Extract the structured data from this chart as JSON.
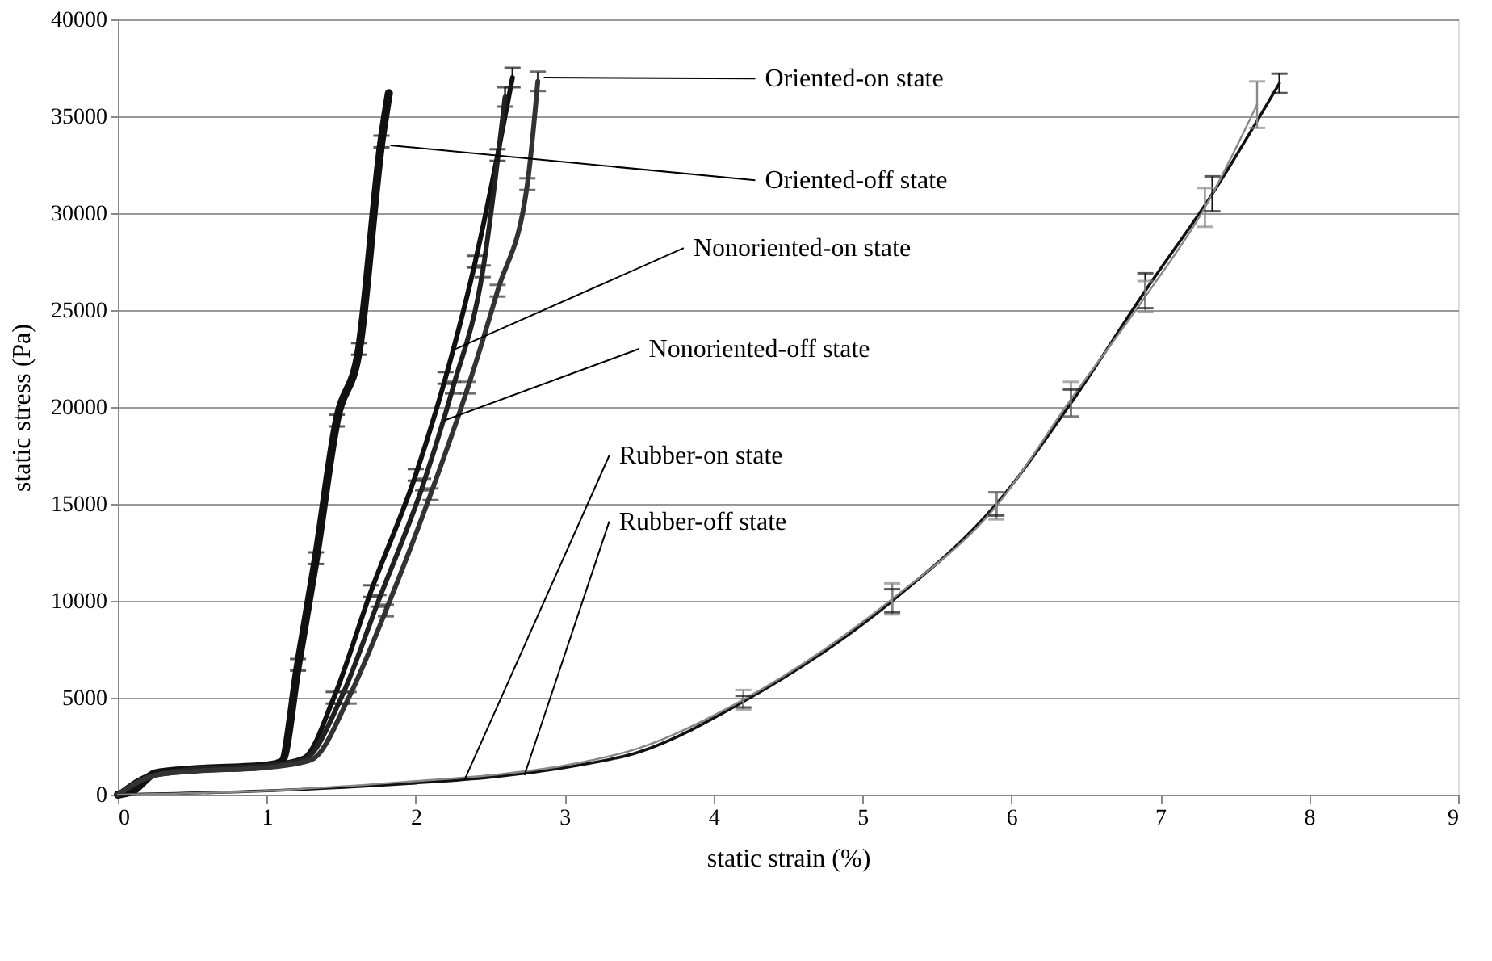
{
  "chart_data": {
    "type": "line",
    "xlabel": "static strain (%)",
    "ylabel": "static stress (Pa)",
    "xlim": [
      0,
      9
    ],
    "xticks": [
      0,
      1,
      2,
      3,
      4,
      5,
      6,
      7,
      8,
      9
    ],
    "ylim": [
      0,
      40000
    ],
    "yticks": [
      0,
      5000,
      10000,
      15000,
      20000,
      25000,
      30000,
      35000,
      40000
    ],
    "grid": "y",
    "marker": "none",
    "line_style": "solid",
    "series": [
      {
        "color": "#111111",
        "x": [
          0,
          0.1,
          0.25,
          0.5,
          1.0,
          1.1,
          1.21,
          1.33,
          1.47,
          1.62,
          1.77,
          1.82
        ],
        "values": [
          0,
          200,
          1100,
          1300,
          1500,
          1700,
          6700,
          12200,
          19300,
          23000,
          33700,
          36200
        ],
        "errors": [
          null,
          null,
          null,
          null,
          null,
          null,
          300,
          300,
          300,
          300,
          300,
          null
        ]
      },
      {
        "color": "#111111",
        "x": [
          0,
          0.25,
          0.5,
          1.0,
          1.25,
          1.45,
          1.7,
          2.0,
          2.2,
          2.4,
          2.55,
          2.65
        ],
        "values": [
          0,
          1100,
          1300,
          1500,
          1900,
          5000,
          10500,
          16500,
          21500,
          27500,
          33000,
          37000
        ],
        "errors": [
          null,
          null,
          null,
          null,
          null,
          300,
          300,
          300,
          300,
          300,
          300,
          500
        ]
      },
      {
        "color": "#222222",
        "x": [
          0,
          0.25,
          0.5,
          1.0,
          1.25,
          1.5,
          1.75,
          2.05,
          2.25,
          2.45,
          2.6
        ],
        "values": [
          0,
          1000,
          1300,
          1500,
          1800,
          5000,
          10000,
          16000,
          21000,
          27000,
          36000
        ],
        "errors": [
          null,
          null,
          null,
          null,
          null,
          300,
          300,
          300,
          300,
          300,
          500
        ]
      },
      {
        "color": "#333333",
        "x": [
          0,
          0.25,
          0.5,
          1.0,
          1.3,
          1.55,
          1.8,
          2.1,
          2.35,
          2.55,
          2.75,
          2.82
        ],
        "values": [
          0,
          1000,
          1200,
          1400,
          1800,
          5000,
          9500,
          15500,
          21000,
          26000,
          31500,
          36800
        ],
        "errors": [
          null,
          null,
          null,
          null,
          null,
          300,
          300,
          300,
          300,
          300,
          300,
          500
        ]
      },
      {
        "color": "#111111",
        "x": [
          0,
          1,
          2,
          2.5,
          3,
          3.5,
          4.2,
          5.2,
          5.9,
          6.4,
          6.9,
          7.35,
          7.8
        ],
        "values": [
          0,
          200,
          600,
          900,
          1400,
          2200,
          4800,
          10000,
          15000,
          20200,
          26000,
          31000,
          36700
        ],
        "errors": [
          null,
          null,
          null,
          null,
          null,
          null,
          300,
          600,
          600,
          700,
          900,
          900,
          500
        ]
      },
      {
        "color": "#888888",
        "x": [
          0,
          1,
          2,
          2.5,
          3,
          3.5,
          4.2,
          5.2,
          5.9,
          6.4,
          6.9,
          7.3,
          7.65
        ],
        "values": [
          0,
          200,
          700,
          1000,
          1500,
          2400,
          4900,
          10100,
          14900,
          20400,
          25700,
          30300,
          35600
        ],
        "errors": [
          null,
          null,
          null,
          null,
          null,
          null,
          500,
          800,
          700,
          900,
          800,
          1000,
          1200
        ]
      }
    ],
    "annotations": [
      {
        "text": "Oriented-on state",
        "x": 2.86,
        "y": 37000
      },
      {
        "text": "Oriented-off state",
        "x": 1.83,
        "y": 33500
      },
      {
        "text": "Nonoriented-on state",
        "x": 2.24,
        "y": 22900
      },
      {
        "text": "Nonoriented-off state",
        "x": 2.19,
        "y": 19300
      },
      {
        "text": "Rubber-on state",
        "x": 2.33,
        "y": 800
      },
      {
        "text": "Rubber-off state",
        "x": 2.73,
        "y": 1000
      }
    ]
  }
}
